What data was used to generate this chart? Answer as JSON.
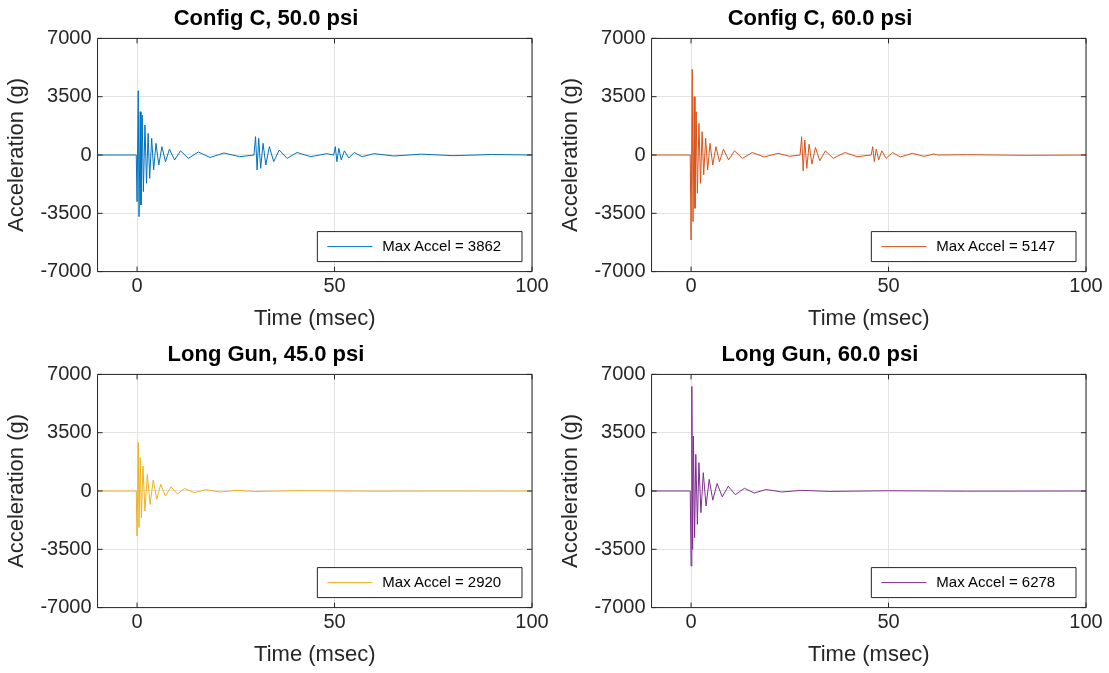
{
  "chart_data": [
    {
      "type": "line",
      "title": "Config C, 50.0 psi",
      "xlabel": "Time (msec)",
      "ylabel": "Acceleration (g)",
      "xlim": [
        -10,
        100
      ],
      "xticks": [
        0,
        50,
        100
      ],
      "ylim": [
        -7000,
        7000
      ],
      "yticks": [
        -7000,
        -3500,
        0,
        3500,
        7000
      ],
      "grid": true,
      "legend": "bottom right",
      "marker": "none",
      "line_style": "solid",
      "series": [
        {
          "name": "Max Accel = 3862",
          "color": "#0072bd",
          "x": [
            -10,
            -0.2,
            0,
            0.3,
            0.5,
            0.8,
            1.0,
            1.3,
            1.6,
            2.0,
            2.4,
            2.8,
            3.2,
            3.7,
            4.2,
            4.8,
            5.5,
            6.3,
            7.2,
            8.2,
            9.5,
            11,
            13,
            15.5,
            18.5,
            22,
            26,
            29.6,
            30,
            30.4,
            30.8,
            31.3,
            31.9,
            32.6,
            33.5,
            34.6,
            36,
            38,
            40.5,
            44,
            48,
            49.8,
            50.2,
            50.6,
            51.1,
            51.7,
            52.5,
            53.6,
            55,
            57,
            60,
            65,
            72,
            80,
            90,
            100
          ],
          "values": [
            0,
            0,
            -2800,
            3862,
            -3700,
            2600,
            -3000,
            2400,
            -2200,
            1800,
            -1700,
            1300,
            -1400,
            1000,
            -900,
            700,
            -600,
            500,
            -400,
            350,
            -300,
            250,
            -200,
            180,
            -150,
            120,
            -100,
            0,
            1100,
            -900,
            1000,
            -800,
            700,
            -600,
            500,
            -400,
            300,
            -200,
            150,
            -100,
            80,
            0,
            500,
            -400,
            400,
            -300,
            250,
            -180,
            150,
            -100,
            80,
            -60,
            50,
            -40,
            30,
            0
          ]
        }
      ]
    },
    {
      "type": "line",
      "title": "Config C, 60.0 psi",
      "xlabel": "Time (msec)",
      "ylabel": "Acceleration (g)",
      "xlim": [
        -10,
        100
      ],
      "xticks": [
        0,
        50,
        100
      ],
      "ylim": [
        -7000,
        7000
      ],
      "yticks": [
        -7000,
        -3500,
        0,
        3500,
        7000
      ],
      "grid": true,
      "legend": "bottom right",
      "marker": "none",
      "line_style": "solid",
      "series": [
        {
          "name": "Max Accel = 5147",
          "color": "#d95319",
          "x": [
            -10,
            -0.2,
            0,
            0.3,
            0.5,
            0.8,
            1.0,
            1.3,
            1.6,
            2.0,
            2.4,
            2.8,
            3.2,
            3.7,
            4.2,
            4.8,
            5.5,
            6.3,
            7.2,
            8.2,
            9.5,
            11,
            13,
            15.5,
            18.5,
            22,
            25,
            27.6,
            28,
            28.4,
            28.8,
            29.3,
            29.9,
            30.6,
            31.5,
            32.6,
            34,
            36,
            39,
            42,
            45.6,
            46,
            46.4,
            46.9,
            47.5,
            48.3,
            49.4,
            51,
            53,
            56,
            59,
            61.5,
            62.5,
            70,
            85,
            100
          ],
          "values": [
            0,
            0,
            -5100,
            5147,
            -4000,
            3500,
            -3200,
            2600,
            -2300,
            1900,
            -1700,
            1400,
            -1200,
            1000,
            -900,
            700,
            -600,
            500,
            -400,
            350,
            -300,
            250,
            -200,
            150,
            -120,
            100,
            -80,
            0,
            1100,
            -950,
            900,
            -800,
            650,
            -550,
            450,
            -350,
            250,
            -200,
            150,
            -100,
            0,
            500,
            -400,
            350,
            -300,
            250,
            -200,
            150,
            -120,
            100,
            -80,
            60,
            0,
            20,
            -20,
            0
          ]
        }
      ]
    },
    {
      "type": "line",
      "title": "Long Gun, 45.0 psi",
      "xlabel": "Time (msec)",
      "ylabel": "Acceleration (g)",
      "xlim": [
        -10,
        100
      ],
      "xticks": [
        0,
        50,
        100
      ],
      "ylim": [
        -7000,
        7000
      ],
      "yticks": [
        -7000,
        -3500,
        0,
        3500,
        7000
      ],
      "grid": true,
      "legend": "bottom right",
      "marker": "none",
      "line_style": "solid",
      "series": [
        {
          "name": "Max Accel = 2920",
          "color": "#edb120",
          "x": [
            -10,
            -0.2,
            0,
            0.3,
            0.5,
            0.8,
            1.1,
            1.5,
            2,
            2.6,
            3.3,
            4.1,
            5,
            6,
            7.2,
            8.6,
            10.2,
            12,
            14.5,
            17.5,
            21,
            25,
            30,
            40,
            60,
            100
          ],
          "values": [
            0,
            0,
            -2700,
            2920,
            -2200,
            2000,
            -1600,
            1500,
            -1200,
            1000,
            -800,
            650,
            -500,
            400,
            -300,
            250,
            -180,
            150,
            -100,
            80,
            -60,
            40,
            -30,
            20,
            -10,
            0
          ]
        }
      ]
    },
    {
      "type": "line",
      "title": "Long Gun, 60.0 psi",
      "xlabel": "Time (msec)",
      "ylabel": "Acceleration (g)",
      "xlim": [
        -10,
        100
      ],
      "xticks": [
        0,
        50,
        100
      ],
      "ylim": [
        -7000,
        7000
      ],
      "yticks": [
        -7000,
        -3500,
        0,
        3500,
        7000
      ],
      "grid": true,
      "legend": "bottom right",
      "marker": "none",
      "line_style": "solid",
      "series": [
        {
          "name": "Max Accel = 6278",
          "color": "#7e2f8e",
          "x": [
            -10,
            -0.2,
            0,
            0.2,
            0.4,
            0.6,
            0.9,
            1.2,
            1.6,
            2,
            2.5,
            3.1,
            3.8,
            4.6,
            5.5,
            6.6,
            7.9,
            9.4,
            11.2,
            13.5,
            16,
            19,
            23,
            28,
            35,
            50,
            70,
            100
          ],
          "values": [
            0,
            0,
            -4500,
            6278,
            -3500,
            3300,
            -2800,
            2200,
            -2000,
            1700,
            -1300,
            1100,
            -900,
            700,
            -550,
            450,
            -350,
            280,
            -220,
            160,
            -120,
            90,
            -60,
            40,
            -25,
            15,
            -10,
            0
          ]
        }
      ]
    }
  ]
}
